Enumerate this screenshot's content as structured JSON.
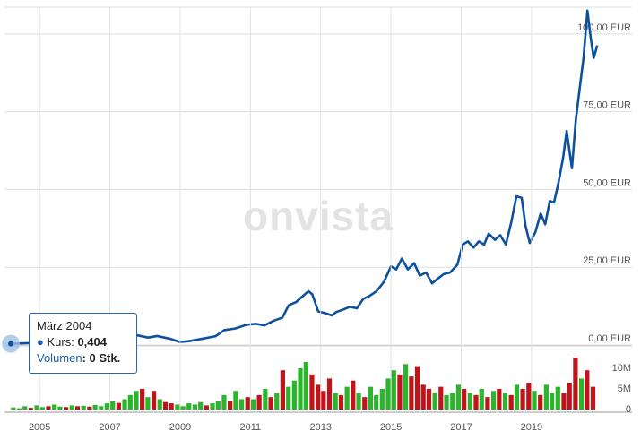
{
  "chart_data": [
    {
      "type": "line",
      "xlim": [
        2004,
        2021.86
      ],
      "ylim": [
        0,
        108.6
      ],
      "grid": true,
      "yticks": [
        {
          "value": 0,
          "label": "0,00 EUR"
        },
        {
          "value": 25,
          "label": "25,00 EUR"
        },
        {
          "value": 50,
          "label": "50,00 EUR"
        },
        {
          "value": 75,
          "label": "75,00 EUR"
        },
        {
          "value": 100,
          "label": "100,00 EUR"
        }
      ],
      "x": [
        2004.18,
        2004.64,
        2005.41,
        2006.17,
        2006.68,
        2007.19,
        2007.7,
        2008.09,
        2008.34,
        2008.72,
        2008.98,
        2009.23,
        2009.62,
        2010.0,
        2010.26,
        2010.56,
        2010.89,
        2011.15,
        2011.4,
        2011.66,
        2011.91,
        2012.09,
        2012.3,
        2012.5,
        2012.65,
        2012.76,
        2012.93,
        2013.11,
        2013.32,
        2013.44,
        2013.62,
        2013.83,
        2014.03,
        2014.21,
        2014.39,
        2014.59,
        2014.8,
        2015.0,
        2015.15,
        2015.31,
        2015.48,
        2015.66,
        2015.82,
        2016.0,
        2016.17,
        2016.33,
        2016.5,
        2016.68,
        2016.89,
        2017.04,
        2017.19,
        2017.35,
        2017.5,
        2017.65,
        2017.78,
        2017.96,
        2018.11,
        2018.27,
        2018.42,
        2018.57,
        2018.72,
        2018.83,
        2018.95,
        2019.11,
        2019.26,
        2019.39,
        2019.52,
        2019.64,
        2019.77,
        2019.9,
        2020.0,
        2020.15,
        2020.26,
        2020.38,
        2020.48,
        2020.59,
        2020.69,
        2020.77,
        2020.87
      ],
      "series": [
        {
          "color": "#0d519e",
          "values": [
            0.404,
            0.6,
            0.9,
            1.3,
            2.0,
            2.5,
            3.3,
            2.4,
            2.9,
            2.0,
            1.0,
            1.2,
            2.0,
            2.8,
            4.8,
            5.3,
            6.5,
            6.8,
            6.3,
            7.8,
            8.8,
            12.8,
            13.8,
            15.8,
            17.3,
            16.3,
            10.8,
            10.3,
            9.5,
            10.6,
            11.3,
            12.3,
            11.8,
            14.8,
            15.8,
            17.3,
            20.3,
            25.3,
            24.3,
            27.8,
            24.3,
            26.3,
            22.3,
            23.3,
            19.8,
            21.3,
            22.8,
            23.3,
            25.8,
            32.3,
            33.3,
            31.3,
            33.3,
            32.3,
            35.8,
            33.8,
            35.3,
            32.3,
            39.3,
            47.8,
            47.3,
            38.3,
            32.8,
            36.3,
            42.3,
            38.8,
            46.3,
            45.8,
            52.3,
            60.3,
            68.8,
            56.8,
            72.3,
            83.3,
            92.3,
            107.5,
            98.3,
            92.3,
            96.3
          ]
        }
      ],
      "watermark": "onvista",
      "tooltip": {
        "date": "März 2004",
        "kurs_label": "Kurs:",
        "kurs_value": "0,404",
        "volume_label": "Volumen",
        "volume_value": ": 0 Stk."
      }
    },
    {
      "type": "bar",
      "xlim": [
        2004,
        2021.86
      ],
      "ylim": [
        0,
        15.4
      ],
      "yticks": [
        0,
        {
          "value": 5,
          "label": "5M"
        },
        {
          "value": 10,
          "label": "10M"
        }
      ],
      "xticks": [
        2005,
        2007,
        2009,
        2011,
        2013,
        2015,
        2017,
        2019
      ],
      "x": [
        2004.25,
        2004.42,
        2004.58,
        2004.75,
        2004.92,
        2005.08,
        2005.25,
        2005.42,
        2005.58,
        2005.75,
        2005.92,
        2006.08,
        2006.25,
        2006.42,
        2006.58,
        2006.75,
        2006.92,
        2007.08,
        2007.25,
        2007.42,
        2007.58,
        2007.75,
        2007.92,
        2008.08,
        2008.25,
        2008.42,
        2008.58,
        2008.75,
        2008.92,
        2009.08,
        2009.25,
        2009.42,
        2009.58,
        2009.75,
        2009.92,
        2010.08,
        2010.25,
        2010.42,
        2010.58,
        2010.75,
        2010.92,
        2011.08,
        2011.25,
        2011.42,
        2011.58,
        2011.75,
        2011.92,
        2012.08,
        2012.25,
        2012.42,
        2012.58,
        2012.75,
        2012.92,
        2013.08,
        2013.25,
        2013.42,
        2013.58,
        2013.75,
        2013.92,
        2014.08,
        2014.25,
        2014.42,
        2014.58,
        2014.75,
        2014.92,
        2015.08,
        2015.25,
        2015.42,
        2015.58,
        2015.75,
        2015.92,
        2016.08,
        2016.25,
        2016.42,
        2016.58,
        2016.75,
        2016.92,
        2017.08,
        2017.25,
        2017.42,
        2017.58,
        2017.75,
        2017.92,
        2018.08,
        2018.25,
        2018.42,
        2018.58,
        2018.75,
        2018.92,
        2019.08,
        2019.25,
        2019.42,
        2019.58,
        2019.75,
        2019.92,
        2020.08,
        2020.25,
        2020.42,
        2020.58,
        2020.75
      ],
      "series": [
        {
          "values": [
            0.5,
            0.3,
            0.8,
            0.4,
            1.0,
            0.6,
            0.8,
            1.2,
            0.7,
            0.6,
            1.0,
            0.8,
            0.9,
            0.7,
            1.1,
            0.8,
            1.5,
            2.0,
            1.6,
            2.5,
            3.5,
            4.5,
            5.0,
            3.0,
            4.5,
            2.5,
            1.8,
            1.5,
            1.2,
            0.8,
            1.5,
            1.2,
            1.8,
            1.0,
            1.5,
            2.0,
            3.5,
            2.0,
            4.5,
            2.5,
            3.0,
            2.5,
            3.5,
            5.0,
            3.0,
            4.0,
            9.5,
            5.5,
            7.0,
            10.0,
            11.5,
            8.5,
            6.0,
            4.5,
            7.5,
            4.0,
            3.5,
            5.5,
            7.0,
            4.0,
            3.0,
            5.5,
            3.5,
            5.0,
            7.5,
            9.5,
            8.5,
            11.0,
            8.0,
            10.5,
            6.0,
            5.0,
            4.0,
            5.5,
            3.5,
            4.0,
            6.0,
            5.0,
            4.0,
            3.5,
            5.0,
            3.0,
            4.5,
            5.0,
            4.0,
            3.5,
            6.0,
            5.0,
            6.5,
            4.5,
            3.5,
            6.0,
            4.0,
            5.5,
            4.0,
            6.5,
            12.5,
            7.5,
            9.5,
            5.5
          ],
          "colors": [
            "#2cb52c",
            "#2cb52c",
            "#2cb52c",
            "#c0141a",
            "#2cb52c",
            "#2cb52c",
            "#c0141a",
            "#2cb52c",
            "#2cb52c",
            "#c0141a",
            "#2cb52c",
            "#c0141a",
            "#2cb52c",
            "#c0141a",
            "#2cb52c",
            "#2cb52c",
            "#2cb52c",
            "#2cb52c",
            "#c0141a",
            "#2cb52c",
            "#2cb52c",
            "#2cb52c",
            "#c0141a",
            "#2cb52c",
            "#c0141a",
            "#2cb52c",
            "#c0141a",
            "#c0141a",
            "#2cb52c",
            "#2cb52c",
            "#2cb52c",
            "#2cb52c",
            "#2cb52c",
            "#c0141a",
            "#2cb52c",
            "#2cb52c",
            "#2cb52c",
            "#c0141a",
            "#2cb52c",
            "#2cb52c",
            "#c0141a",
            "#2cb52c",
            "#c0141a",
            "#2cb52c",
            "#c0141a",
            "#2cb52c",
            "#c0141a",
            "#2cb52c",
            "#2cb52c",
            "#2cb52c",
            "#2cb52c",
            "#c0141a",
            "#c0141a",
            "#c0141a",
            "#c0141a",
            "#2cb52c",
            "#c0141a",
            "#2cb52c",
            "#c0141a",
            "#2cb52c",
            "#c0141a",
            "#2cb52c",
            "#2cb52c",
            "#2cb52c",
            "#2cb52c",
            "#2cb52c",
            "#c0141a",
            "#2cb52c",
            "#c0141a",
            "#c0141a",
            "#c0141a",
            "#c0141a",
            "#2cb52c",
            "#c0141a",
            "#2cb52c",
            "#2cb52c",
            "#2cb52c",
            "#c0141a",
            "#2cb52c",
            "#c0141a",
            "#2cb52c",
            "#c0141a",
            "#2cb52c",
            "#c0141a",
            "#2cb52c",
            "#c0141a",
            "#2cb52c",
            "#c0141a",
            "#c0141a",
            "#2cb52c",
            "#c0141a",
            "#2cb52c",
            "#2cb52c",
            "#2cb52c",
            "#c0141a",
            "#c0141a",
            "#c0141a",
            "#2cb52c",
            "#c0141a",
            "#c0141a"
          ]
        }
      ]
    }
  ]
}
